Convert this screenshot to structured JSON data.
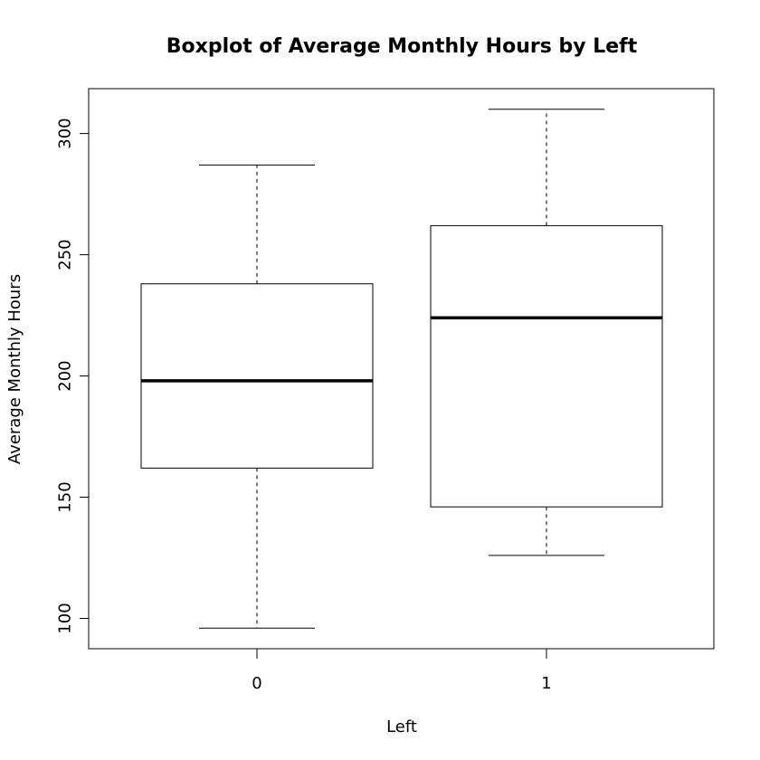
{
  "chart_data": {
    "type": "boxplot",
    "title": "Boxplot of Average Monthly Hours by Left",
    "xlabel": "Left",
    "ylabel": "Average Monthly Hours",
    "categories": [
      "0",
      "1"
    ],
    "boxes": [
      {
        "category": "0",
        "min": 96,
        "q1": 162,
        "median": 198,
        "q3": 238,
        "max": 287
      },
      {
        "category": "1",
        "min": 126,
        "q1": 146,
        "median": 224,
        "q3": 262,
        "max": 310
      }
    ],
    "yticks": [
      100,
      150,
      200,
      250,
      300
    ],
    "ylim": [
      87.5,
      318.5
    ],
    "grid": false,
    "colors": {
      "stroke": "#000000",
      "fill": "#ffffff"
    }
  }
}
